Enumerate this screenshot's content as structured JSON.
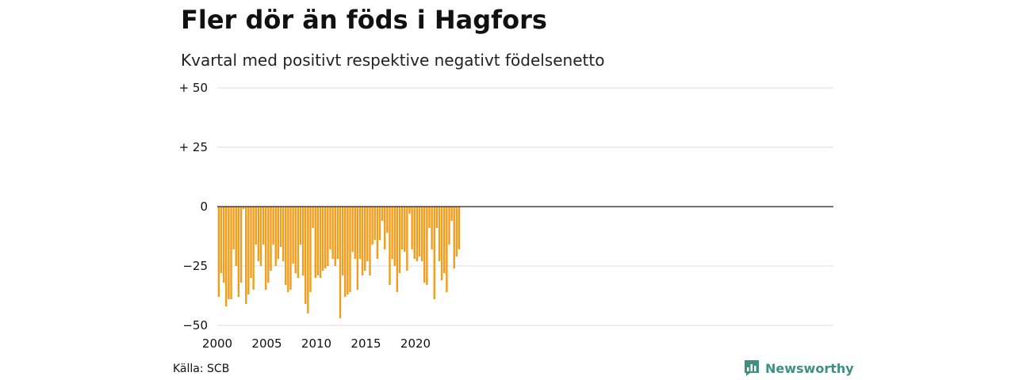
{
  "title": "Fler dör än föds i Hagfors",
  "subtitle": "Kvartal med positivt respektive negativt födelsenetto",
  "source": "Källa: SCB",
  "brand": "Newsworthy",
  "colors": {
    "bar": "#f29d1b",
    "grid": "#dddddd",
    "zero": "#222222",
    "brand": "#3f8f83"
  },
  "chart_data": {
    "type": "bar",
    "x_start": 2000,
    "x_step_per_bar": 0.25,
    "grid": true,
    "ylim": [
      -50,
      50
    ],
    "yticks": [
      {
        "value": 50,
        "label": "+ 50"
      },
      {
        "value": 25,
        "label": "+ 25"
      },
      {
        "value": 0,
        "label": "0"
      },
      {
        "value": -25,
        "label": "−25"
      },
      {
        "value": -50,
        "label": "−50"
      }
    ],
    "xticks": [
      2000,
      2005,
      2010,
      2015,
      2020
    ],
    "values": [
      -38,
      -28,
      -32,
      -42,
      -39,
      -39,
      -18,
      -25,
      -38,
      -32,
      -1,
      -41,
      -37,
      -30,
      -35,
      -16,
      -23,
      -25,
      -16,
      -35,
      -32,
      -27,
      -16,
      -25,
      -22,
      -17,
      -23,
      -33,
      -36,
      -35,
      -24,
      -28,
      -30,
      -16,
      -29,
      -41,
      -45,
      -36,
      -9,
      -30,
      -29,
      -30,
      -27,
      -26,
      -25,
      -18,
      -22,
      -25,
      -22,
      -47,
      -29,
      -38,
      -37,
      -36,
      -19,
      -22,
      -35,
      -22,
      -29,
      -27,
      -23,
      -29,
      -16,
      -14,
      -22,
      -14,
      -6,
      -18,
      -11,
      -33,
      -22,
      -25,
      -36,
      -28,
      -18,
      -19,
      -27,
      -3,
      -18,
      -22,
      -23,
      -21,
      -23,
      -32,
      -33,
      -9,
      -18,
      -39,
      -9,
      -23,
      -31,
      -28,
      -36,
      -16,
      -6,
      -26,
      -21,
      -18
    ]
  }
}
